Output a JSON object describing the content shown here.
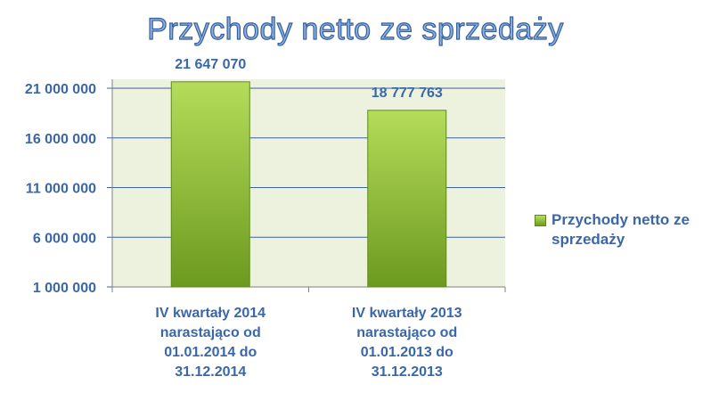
{
  "chart_data": {
    "type": "bar",
    "title": "Przychody netto ze sprzedaży",
    "categories": [
      "IV kwartały 2014 narastająco od 01.01.2014 do 31.12.2014",
      "IV kwartały 2013 narastająco od 01.01.2013 do 31.12.2013"
    ],
    "category_lines": [
      [
        "IV kwartały 2014",
        "narastająco od",
        "01.01.2014 do",
        "31.12.2014"
      ],
      [
        "IV kwartały 2013",
        "narastająco od",
        "01.01.2013 do",
        "31.12.2013"
      ]
    ],
    "series": [
      {
        "name": "Przychody netto ze sprzedaży",
        "values": [
          21647070,
          18777763
        ]
      }
    ],
    "data_labels": [
      "21 647 070",
      "18 777 763"
    ],
    "ylim": [
      1000000,
      21000000
    ],
    "yticks": [
      1000000,
      6000000,
      11000000,
      16000000,
      21000000
    ],
    "ytick_labels": [
      "1 000 000",
      "6 000 000",
      "11 000 000",
      "16 000 000",
      "21 000 000"
    ],
    "grid": true,
    "legend_position": "right",
    "colors": {
      "bar_top": "#b5dc5a",
      "bar_bottom": "#6c9a1f",
      "bar_edge": "#5f8a1a",
      "plot_bg": "#edf2df",
      "gridline": "#3b63a6",
      "label_text": "#3a67a8",
      "title_fill": "#8fb0df",
      "title_stroke": "#35609f"
    }
  }
}
